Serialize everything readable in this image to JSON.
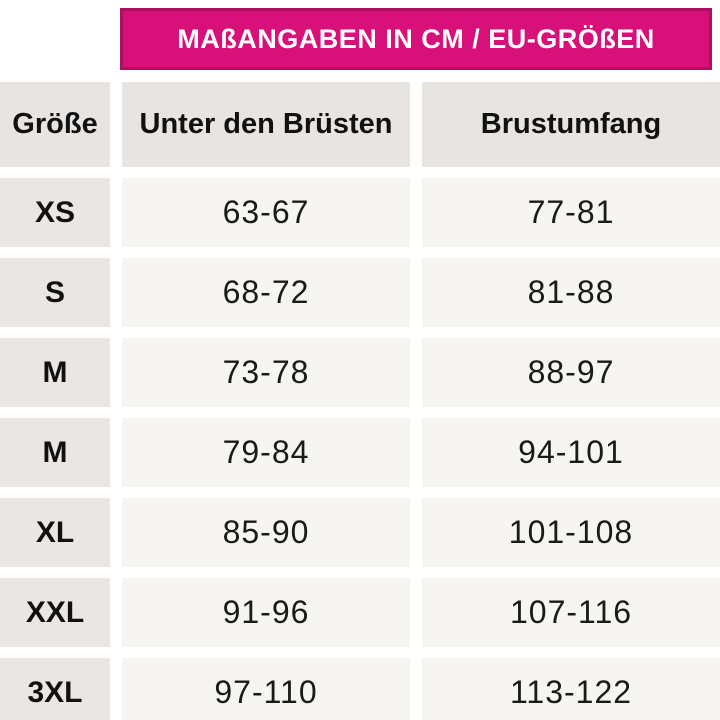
{
  "banner": {
    "title": "MAßANGABEN IN CM / EU-GRÖßEN"
  },
  "colors": {
    "banner_fill": "#D8117A",
    "banner_border": "#AE1060",
    "header_cell_bg": "#E7E4E1",
    "size_cell_bg": "#E9E6E3",
    "value_cell_bg": "#F7F5F1",
    "text": "#1A1A1A"
  },
  "table": {
    "columns": [
      "Größe",
      "Unter den Brüsten",
      "Brustumfang"
    ],
    "rows": [
      {
        "size": "XS",
        "underbust": "63-67",
        "bust": "77-81"
      },
      {
        "size": "S",
        "underbust": "68-72",
        "bust": "81-88"
      },
      {
        "size": "M",
        "underbust": "73-78",
        "bust": "88-97"
      },
      {
        "size": "M",
        "underbust": "79-84",
        "bust": "94-101"
      },
      {
        "size": "XL",
        "underbust": "85-90",
        "bust": "101-108"
      },
      {
        "size": "XXL",
        "underbust": "91-96",
        "bust": "107-116"
      },
      {
        "size": "3XL",
        "underbust": "97-110",
        "bust": "113-122"
      }
    ]
  }
}
